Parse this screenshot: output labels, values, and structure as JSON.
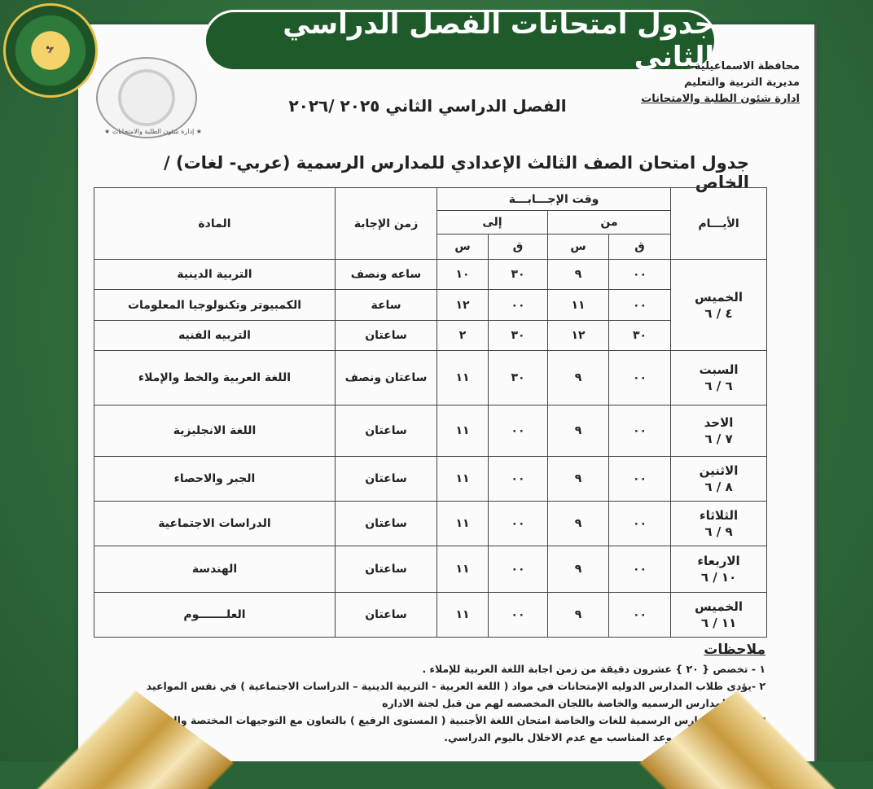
{
  "banner": {
    "title": "جدول امتحانات الفصل الدراسي الثاني"
  },
  "logo": {
    "text": "جمهورية مصر العربية - محافظة الإسماعيلية"
  },
  "seal": {
    "caption": "★ إدارة شئون الطلبة والامتحانات ★"
  },
  "header": {
    "line1": "محافظة الاسماعيلية",
    "line2": "مديرية التربية والتعليم",
    "line3": "ادارة شئون الطلبة والامتحانات",
    "term": "الفصل الدراسي الثاني ٢٠٢٥ /٢٠٢٦",
    "title": "جدول امتحان الصف الثالث الإعدادي للمدارس الرسمية (عربي- لغات) / الخاص"
  },
  "table": {
    "headers": {
      "days": "الأيـــام",
      "time": "وقت الإجـــابـــة",
      "from": "من",
      "to": "إلى",
      "minute": "ق",
      "hour": "س",
      "duration": "زمن الإجابة",
      "subject": "المادة"
    },
    "days": [
      {
        "name": "الخميس",
        "date": "٤ / ٦",
        "rows": [
          {
            "from_m": "٠٠",
            "from_h": "٩",
            "to_m": "٣٠",
            "to_h": "١٠",
            "duration": "ساعه ونصف",
            "subject": "التربية الدينية"
          },
          {
            "from_m": "٠٠",
            "from_h": "١١",
            "to_m": "٠٠",
            "to_h": "١٢",
            "duration": "ساعة",
            "subject": "الكمبيوتر وتكنولوجيا المعلومات"
          },
          {
            "from_m": "٣٠",
            "from_h": "١٢",
            "to_m": "٣٠",
            "to_h": "٢",
            "duration": "ساعتان",
            "subject": "التربيه الفنيه"
          }
        ]
      },
      {
        "name": "السبت",
        "date": "٦ / ٦",
        "rows": [
          {
            "from_m": "٠٠",
            "from_h": "٩",
            "to_m": "٣٠",
            "to_h": "١١",
            "duration": "ساعتان ونصف",
            "subject": "اللغة العربية والخط والإملاء"
          }
        ]
      },
      {
        "name": "الاحد",
        "date": "٧ / ٦",
        "rows": [
          {
            "from_m": "٠٠",
            "from_h": "٩",
            "to_m": "٠٠",
            "to_h": "١١",
            "duration": "ساعتان",
            "subject": "اللغة الانجليزية"
          }
        ]
      },
      {
        "name": "الاثنين",
        "date": "٨ / ٦",
        "rows": [
          {
            "from_m": "٠٠",
            "from_h": "٩",
            "to_m": "٠٠",
            "to_h": "١١",
            "duration": "ساعتان",
            "subject": "الجبر والاحصاء"
          }
        ]
      },
      {
        "name": "الثلاثاء",
        "date": "٩ / ٦",
        "rows": [
          {
            "from_m": "٠٠",
            "from_h": "٩",
            "to_m": "٠٠",
            "to_h": "١١",
            "duration": "ساعتان",
            "subject": "الدراسات الاجتماعية"
          }
        ]
      },
      {
        "name": "الاربعاء",
        "date": "١٠ / ٦",
        "rows": [
          {
            "from_m": "٠٠",
            "from_h": "٩",
            "to_m": "٠٠",
            "to_h": "١١",
            "duration": "ساعتان",
            "subject": "الهندسة"
          }
        ]
      },
      {
        "name": "الخميس",
        "date": "١١ / ٦",
        "rows": [
          {
            "from_m": "٠٠",
            "from_h": "٩",
            "to_m": "٠٠",
            "to_h": "١١",
            "duration": "ساعتان",
            "subject": "العلـــــــوم"
          }
        ]
      }
    ]
  },
  "notes": {
    "heading": "ملاحظات",
    "items": [
      "١ - تخصص { ٢٠ } عشرون دقيقة من زمن اجابة اللغة العربية للإملاء .",
      "٢ -يؤدى طلاب المدارس الدوليه الإمتحانات في مواد ( اللغة العربية - التربية الدينية – الدراسات الاجتماعية ) في نفس المواعيد",
      "مع المدارس الرسميه والخاصة باللجان المخصصه لهم من قبل لجنة الاداره",
      "٣ – تنظم المدارس الرسمية للغات والخاصة امتحان اللغة الأجنبية ( المستوى الرفيع ) بالتعاون مع التوجيهات المختصة والـ",
      "ـلغات ) في الموعد المناسب مع عدم الاخلال باليوم الدراسي."
    ]
  },
  "colors": {
    "background": "#2f6a3b",
    "banner": "#1f5a2b",
    "gold": "#c89a3c"
  }
}
